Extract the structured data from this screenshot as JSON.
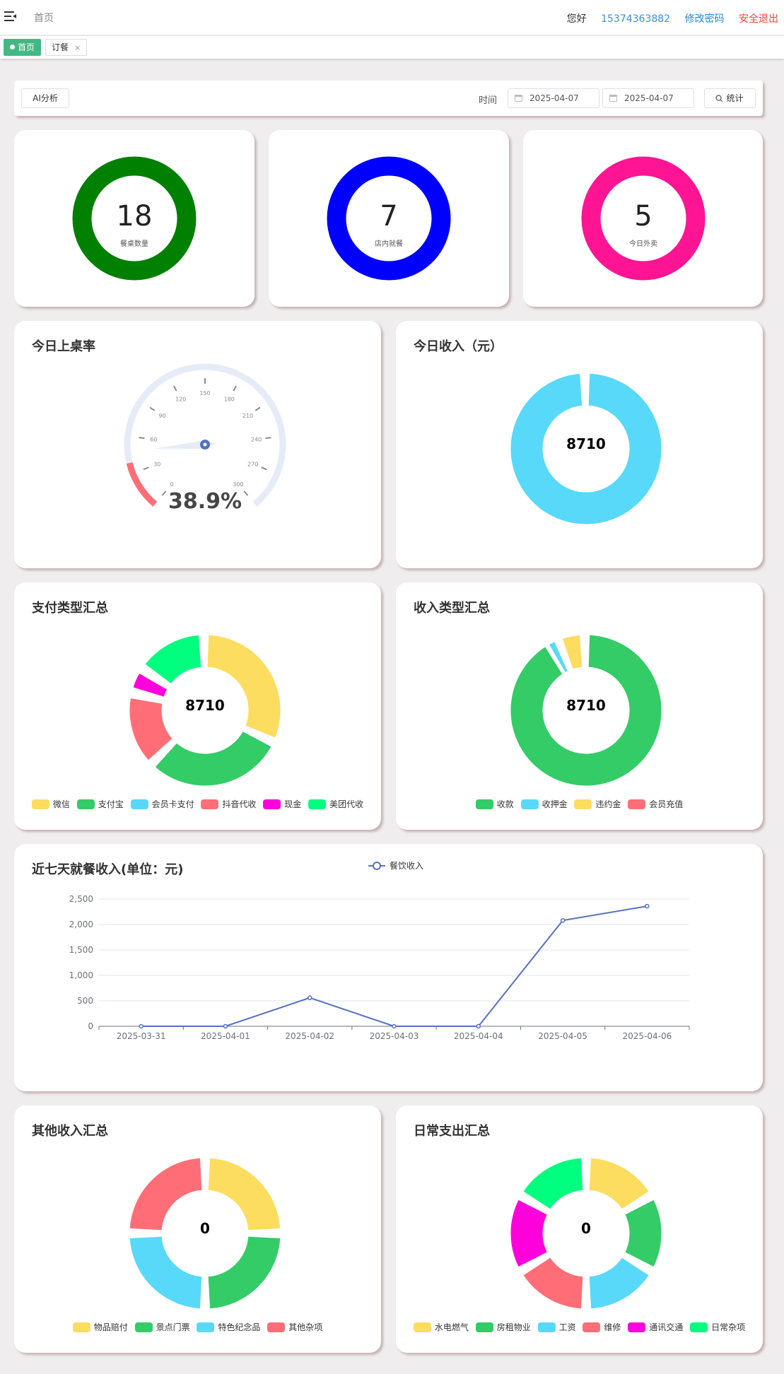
{
  "header": {
    "breadcrumb": "首页",
    "greeting": "您好",
    "phone": "15374363882",
    "change_password": "修改密码",
    "logout": "安全退出"
  },
  "tabs": [
    {
      "label": "首页",
      "active": true
    },
    {
      "label": "订餐",
      "close": "×",
      "active": false
    }
  ],
  "filter": {
    "ai_button": "AI分析",
    "time_label": "时间",
    "start_date": "2025-04-07",
    "end_date": "2025-04-07",
    "stat_button": "统计"
  },
  "stats": [
    {
      "value": "18",
      "label": "餐桌数量",
      "color": "#008000"
    },
    {
      "value": "7",
      "label": "店内就餐",
      "color": "#0000ff"
    },
    {
      "value": "5",
      "label": "今日外卖",
      "color": "#ff1493"
    }
  ],
  "occupancy": {
    "title": "今日上桌率",
    "value_text": "38.9%",
    "value": 38.9,
    "scale_labels": [
      "0",
      "30",
      "60",
      "90",
      "120",
      "150",
      "180",
      "210",
      "240",
      "270",
      "300"
    ]
  },
  "income": {
    "title": "今日收入（元）",
    "center": "8710"
  },
  "pay_types": {
    "title": "支付类型汇总",
    "center": "8710",
    "legend": [
      {
        "name": "微信",
        "color": "#fddd60"
      },
      {
        "name": "支付宝",
        "color": "#33cc66"
      },
      {
        "name": "会员卡支付",
        "color": "#58d9f9"
      },
      {
        "name": "抖音代收",
        "color": "#ff6e76"
      },
      {
        "name": "现金",
        "color": "#ff00dd"
      },
      {
        "name": "美团代收",
        "color": "#00ff7f"
      }
    ]
  },
  "income_types": {
    "title": "收入类型汇总",
    "center": "8710",
    "legend": [
      {
        "name": "收款",
        "color": "#33cc66"
      },
      {
        "name": "收押金",
        "color": "#58d9f9"
      },
      {
        "name": "违约金",
        "color": "#fddd60"
      },
      {
        "name": "会员充值",
        "color": "#ff6e76"
      }
    ]
  },
  "seven_days": {
    "title": "近七天就餐收入(单位：元)",
    "legend": "餐饮收入"
  },
  "other_income": {
    "title": "其他收入汇总",
    "center": "0",
    "legend": [
      {
        "name": "物品赔付",
        "color": "#fddd60"
      },
      {
        "name": "景点门票",
        "color": "#33cc66"
      },
      {
        "name": "特色纪念品",
        "color": "#58d9f9"
      },
      {
        "name": "其他杂项",
        "color": "#ff6e76"
      }
    ]
  },
  "daily_expense": {
    "title": "日常支出汇总",
    "center": "0",
    "legend": [
      {
        "name": "水电燃气",
        "color": "#fddd60"
      },
      {
        "name": "房租物业",
        "color": "#33cc66"
      },
      {
        "name": "工资",
        "color": "#58d9f9"
      },
      {
        "name": "维修",
        "color": "#ff6e76"
      },
      {
        "name": "通讯交通",
        "color": "#ff00dd"
      },
      {
        "name": "日常杂项",
        "color": "#00ff7f"
      }
    ]
  },
  "chart_data": {
    "type": "line",
    "x": [
      "2025-03-31",
      "2025-04-01",
      "2025-04-02",
      "2025-04-03",
      "2025-04-04",
      "2025-04-05",
      "2025-04-06"
    ],
    "series": [
      {
        "name": "餐饮收入",
        "values": [
          0,
          0,
          560,
          0,
          0,
          2080,
          2360
        ],
        "color": "#5470c6"
      }
    ],
    "yticks": [
      "0",
      "500",
      "1,000",
      "1,500",
      "2,000",
      "2,500"
    ],
    "ylim": [
      0,
      2500
    ],
    "grid": true,
    "legend": "top-center"
  }
}
